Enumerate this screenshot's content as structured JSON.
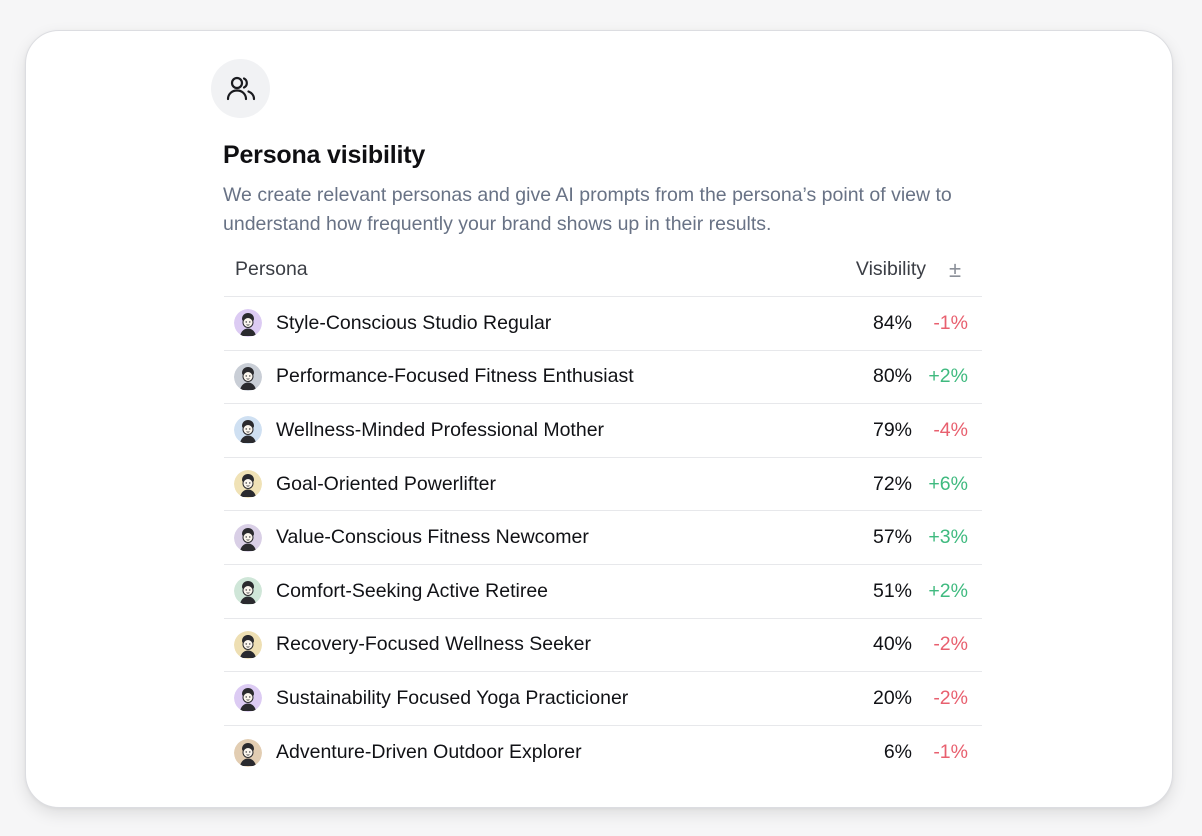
{
  "icon": "users-icon",
  "title": "Persona visibility",
  "description": "We create relevant personas and give AI prompts from the persona’s point of view to understand how frequently your brand shows up in their results.",
  "table": {
    "headers": {
      "persona": "Persona",
      "visibility": "Visibility",
      "change": "±"
    },
    "rows": [
      {
        "name": "Style-Conscious Studio Regular",
        "visibility": "84%",
        "change": "-1%"
      },
      {
        "name": "Performance-Focused Fitness Enthusiast",
        "visibility": "80%",
        "change": "+2%"
      },
      {
        "name": "Wellness-Minded Professional Mother",
        "visibility": "79%",
        "change": "-4%"
      },
      {
        "name": "Goal-Oriented Powerlifter",
        "visibility": "72%",
        "change": "+6%"
      },
      {
        "name": "Value-Conscious Fitness Newcomer",
        "visibility": "57%",
        "change": "+3%"
      },
      {
        "name": "Comfort-Seeking Active Retiree",
        "visibility": "51%",
        "change": "+2%"
      },
      {
        "name": "Recovery-Focused Wellness Seeker",
        "visibility": "40%",
        "change": "-2%"
      },
      {
        "name": "Sustainability Focused Yoga Practicioner",
        "visibility": "20%",
        "change": "-2%"
      },
      {
        "name": "Adventure-Driven Outdoor Explorer",
        "visibility": "6%",
        "change": "-1%"
      }
    ]
  },
  "colors": {
    "positive": "#3fba7f",
    "negative": "#e8606f",
    "avatar_backgrounds": [
      "#dccbf3",
      "#c9ced6",
      "#cfe0f2",
      "#f0e2b6",
      "#d9cfe6",
      "#cfe6d8",
      "#eedfb3",
      "#dccbf3",
      "#e2cdb2"
    ]
  }
}
